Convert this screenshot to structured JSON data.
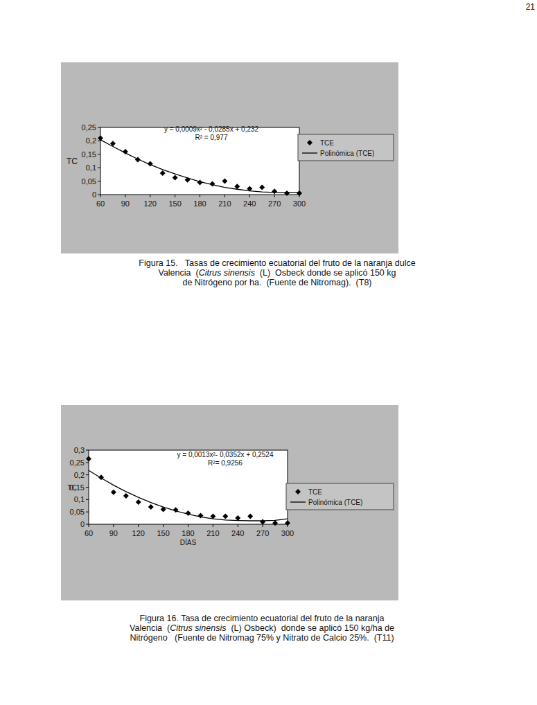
{
  "page_number": "21",
  "chart_data": [
    {
      "type": "scatter",
      "annotations": [
        "y = 0,0009x² - 0,0285x + 0,232",
        "R² = 0,977"
      ],
      "y_label": "TC",
      "x": [
        60,
        75,
        90,
        105,
        120,
        135,
        150,
        165,
        180,
        195,
        210,
        225,
        240,
        255,
        270,
        285,
        300
      ],
      "series": [
        {
          "name": "TCE",
          "type": "scatter",
          "marker": "diamond",
          "color": "#000000",
          "values": [
            0.21,
            0.19,
            0.16,
            0.13,
            0.115,
            0.08,
            0.063,
            0.055,
            0.045,
            0.04,
            0.05,
            0.03,
            0.022,
            0.027,
            0.012,
            0.005,
            0.005
          ]
        },
        {
          "name": "Polinómica (TCE)",
          "type": "line",
          "line_style": "solid",
          "color": "#000000",
          "values": [
            0.204,
            0.179,
            0.155,
            0.132,
            0.112,
            0.093,
            0.077,
            0.062,
            0.048,
            0.037,
            0.027,
            0.02,
            0.014,
            0.01,
            0.008,
            0.008,
            0.008
          ]
        }
      ],
      "xlim": [
        60,
        300
      ],
      "xticks": [
        60,
        90,
        120,
        150,
        180,
        210,
        240,
        270,
        300
      ],
      "ylim": [
        0,
        0.25
      ],
      "yticks": [
        0,
        {
          "value": 0.05,
          "label": "0,05"
        },
        {
          "value": 0.1,
          "label": "0,1"
        },
        {
          "value": 0.15,
          "label": "0,15"
        },
        {
          "value": 0.2,
          "label": "0,2"
        },
        {
          "value": 0.25,
          "label": "0,25"
        }
      ],
      "grid": false,
      "legend": "right"
    },
    {
      "type": "scatter",
      "annotations": [
        "y = 0,0013x²- 0,0352x + 0,2524",
        "R²= 0,9256"
      ],
      "y_label": "TC",
      "x_label": "DÍAS",
      "x": [
        60,
        75,
        90,
        105,
        120,
        135,
        150,
        165,
        180,
        195,
        210,
        225,
        240,
        255,
        270,
        285,
        300
      ],
      "series": [
        {
          "name": "TCE",
          "type": "scatter",
          "marker": "diamond",
          "color": "#000000",
          "values": [
            0.265,
            0.19,
            0.13,
            0.115,
            0.09,
            0.07,
            0.06,
            0.058,
            0.045,
            0.035,
            0.032,
            0.032,
            0.025,
            0.032,
            0.01,
            0.005,
            0.005
          ]
        },
        {
          "name": "Polinómica (TCE)",
          "type": "line",
          "line_style": "solid",
          "color": "#000000",
          "values": [
            0.218,
            0.187,
            0.158,
            0.132,
            0.109,
            0.088,
            0.07,
            0.054,
            0.041,
            0.03,
            0.022,
            0.017,
            0.015,
            0.014,
            0.014,
            0.016,
            0.022
          ]
        }
      ],
      "xlim": [
        60,
        300
      ],
      "xticks": [
        60,
        90,
        120,
        150,
        180,
        210,
        240,
        270,
        300
      ],
      "ylim": [
        0,
        0.3
      ],
      "yticks": [
        0,
        {
          "value": 0.05,
          "label": "0,05"
        },
        {
          "value": 0.1,
          "label": "0,1"
        },
        {
          "value": 0.15,
          "label": "0,15"
        },
        {
          "value": 0.2,
          "label": "0,2"
        },
        {
          "value": 0.25,
          "label": "0,25"
        },
        {
          "value": 0.3,
          "label": "0,3"
        }
      ],
      "grid": false,
      "legend": "right"
    }
  ],
  "captions": [
    [
      [
        "Figura 15.   Tasas de crecimiento ecuatorial del fruto de la naranja dulce"
      ],
      [
        "Valencia  (",
        "Citrus sinensis",
        "  (L)  Osbeck donde se aplicó 150 kg"
      ],
      [
        "de Nitrógeno por ha.  (Fuente de Nitromag).  (T8)"
      ]
    ],
    [
      [
        "Figura 16. Tasa de crecimiento ecuatorial del fruto de la naranja"
      ],
      [
        "Valencia  (",
        "Citrus sinensis",
        "  (L) Osbeck)  donde se aplicó 150 kg/ha de"
      ],
      [
        "Nitrógeno   (Fuente de Nitromag 75% y Nitrato de Calcio 25%.  (T11)"
      ]
    ]
  ]
}
